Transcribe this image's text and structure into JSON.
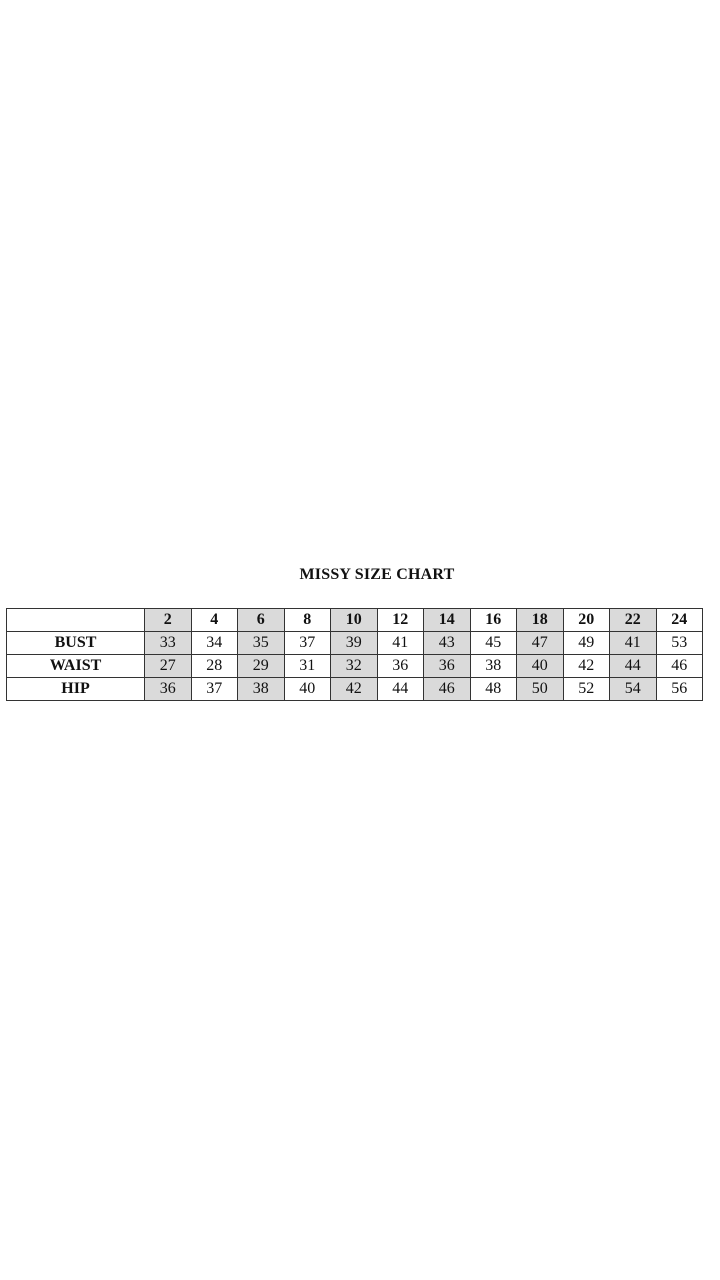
{
  "title": "MISSY SIZE CHART",
  "sizes": [
    "2",
    "4",
    "6",
    "8",
    "10",
    "12",
    "14",
    "16",
    "18",
    "20",
    "22",
    "24"
  ],
  "rows": [
    {
      "label": "BUST",
      "values": [
        "33",
        "34",
        "35",
        "37",
        "39",
        "41",
        "43",
        "45",
        "47",
        "49",
        "41",
        "53"
      ]
    },
    {
      "label": "WAIST",
      "values": [
        "27",
        "28",
        "29",
        "31",
        "32",
        "36",
        "36",
        "38",
        "40",
        "42",
        "44",
        "46"
      ]
    },
    {
      "label": "HIP",
      "values": [
        "36",
        "37",
        "38",
        "40",
        "42",
        "44",
        "46",
        "48",
        "50",
        "52",
        "54",
        "56"
      ]
    }
  ],
  "colors": {
    "shaded_column": "#dadada",
    "border": "#333333"
  },
  "shaded_columns": [
    "2",
    "6",
    "10",
    "14",
    "18",
    "22"
  ]
}
